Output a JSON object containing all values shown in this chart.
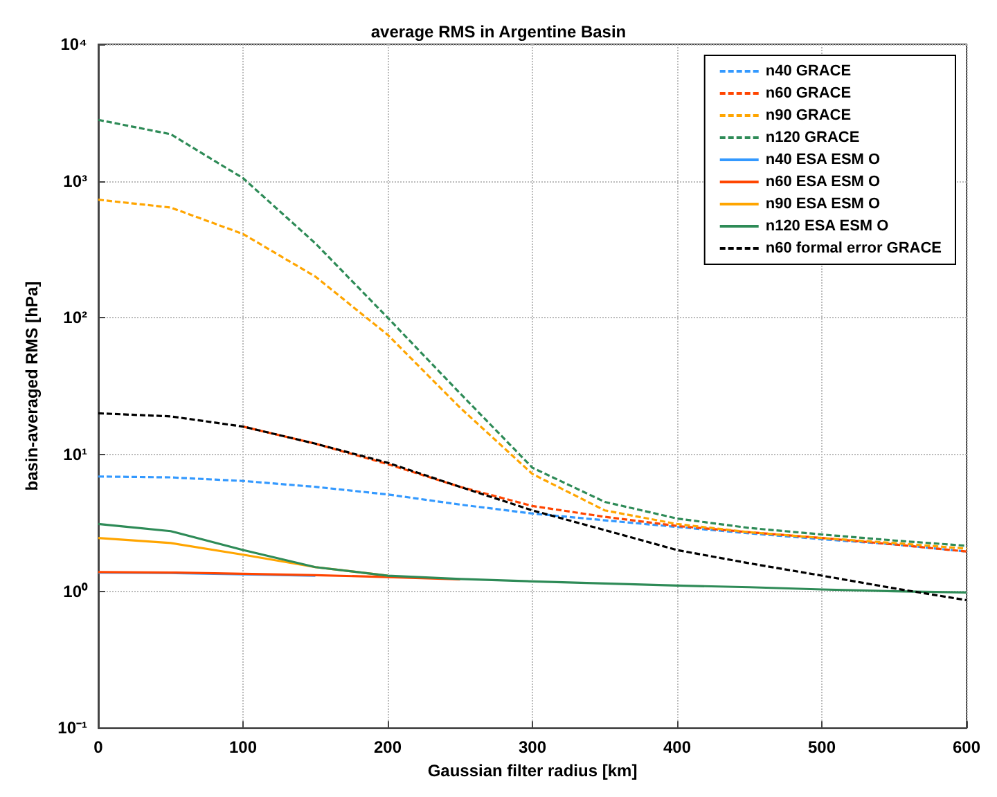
{
  "chart_data": {
    "type": "line",
    "title": "average RMS in Argentine Basin",
    "xlabel": "Gaussian filter radius [km]",
    "ylabel": "basin-averaged RMS [hPa]",
    "x": [
      0,
      50,
      100,
      150,
      200,
      250,
      300,
      350,
      400,
      450,
      500,
      550,
      600
    ],
    "xlim": [
      0,
      600
    ],
    "xticks": [
      0,
      100,
      200,
      300,
      400,
      500,
      600
    ],
    "ylim": [
      0.1,
      10000
    ],
    "yticks": [
      {
        "value": 0.1,
        "label": "10⁻¹"
      },
      {
        "value": 1,
        "label": "10⁰"
      },
      {
        "value": 10,
        "label": "10¹"
      },
      {
        "value": 100,
        "label": "10²"
      },
      {
        "value": 1000,
        "label": "10³"
      },
      {
        "value": 10000,
        "label": "10⁴"
      }
    ],
    "log": "y",
    "grid": true,
    "legend": "top right",
    "marker": "none",
    "series": [
      {
        "name": "n40 GRACE",
        "color": "#3399ff",
        "line_style": "dashed",
        "values": [
          6.9,
          6.8,
          6.4,
          5.8,
          5.1,
          4.3,
          3.7,
          3.3,
          2.95,
          2.65,
          2.4,
          2.2,
          1.95
        ]
      },
      {
        "name": "n60 GRACE",
        "color": "#ff4500",
        "line_style": "dashed",
        "values": [
          null,
          null,
          16,
          12,
          8.5,
          5.8,
          4.2,
          3.5,
          3.0,
          2.7,
          2.45,
          2.2,
          1.95
        ]
      },
      {
        "name": "n90 GRACE",
        "color": "#ffa500",
        "line_style": "dashed",
        "values": [
          730,
          640,
          410,
          200,
          75,
          22,
          7.2,
          3.9,
          3.1,
          2.7,
          2.45,
          2.25,
          2.05
        ]
      },
      {
        "name": "n120 GRACE",
        "color": "#2e8b57",
        "line_style": "dashed",
        "values": [
          2800,
          2200,
          1050,
          350,
          100,
          28,
          8,
          4.5,
          3.4,
          2.9,
          2.6,
          2.35,
          2.15
        ]
      },
      {
        "name": "n40 ESA ESM O",
        "color": "#3399ff",
        "line_style": "solid",
        "values": [
          1.37,
          1.36,
          1.33,
          1.3,
          null,
          null,
          null,
          null,
          null,
          null,
          null,
          null,
          null
        ]
      },
      {
        "name": "n60 ESA ESM O",
        "color": "#ff4500",
        "line_style": "solid",
        "values": [
          1.38,
          1.37,
          1.34,
          1.31,
          1.27,
          1.22,
          null,
          null,
          null,
          null,
          null,
          null,
          null
        ]
      },
      {
        "name": "n90 ESA ESM O",
        "color": "#ffa500",
        "line_style": "solid",
        "values": [
          2.45,
          2.25,
          1.85,
          1.5,
          1.3,
          null,
          null,
          null,
          null,
          null,
          null,
          null,
          null
        ]
      },
      {
        "name": "n120 ESA ESM O",
        "color": "#2e8b57",
        "line_style": "solid",
        "values": [
          3.1,
          2.75,
          2.0,
          1.5,
          1.3,
          1.23,
          1.18,
          1.14,
          1.1,
          1.07,
          1.03,
          1.0,
          0.98
        ]
      },
      {
        "name": "n60 formal error GRACE",
        "color": "#000000",
        "line_style": "dashed",
        "values": [
          20,
          19,
          16,
          12,
          8.7,
          5.8,
          3.9,
          2.8,
          2.0,
          1.6,
          1.3,
          1.05,
          0.86
        ]
      }
    ]
  }
}
